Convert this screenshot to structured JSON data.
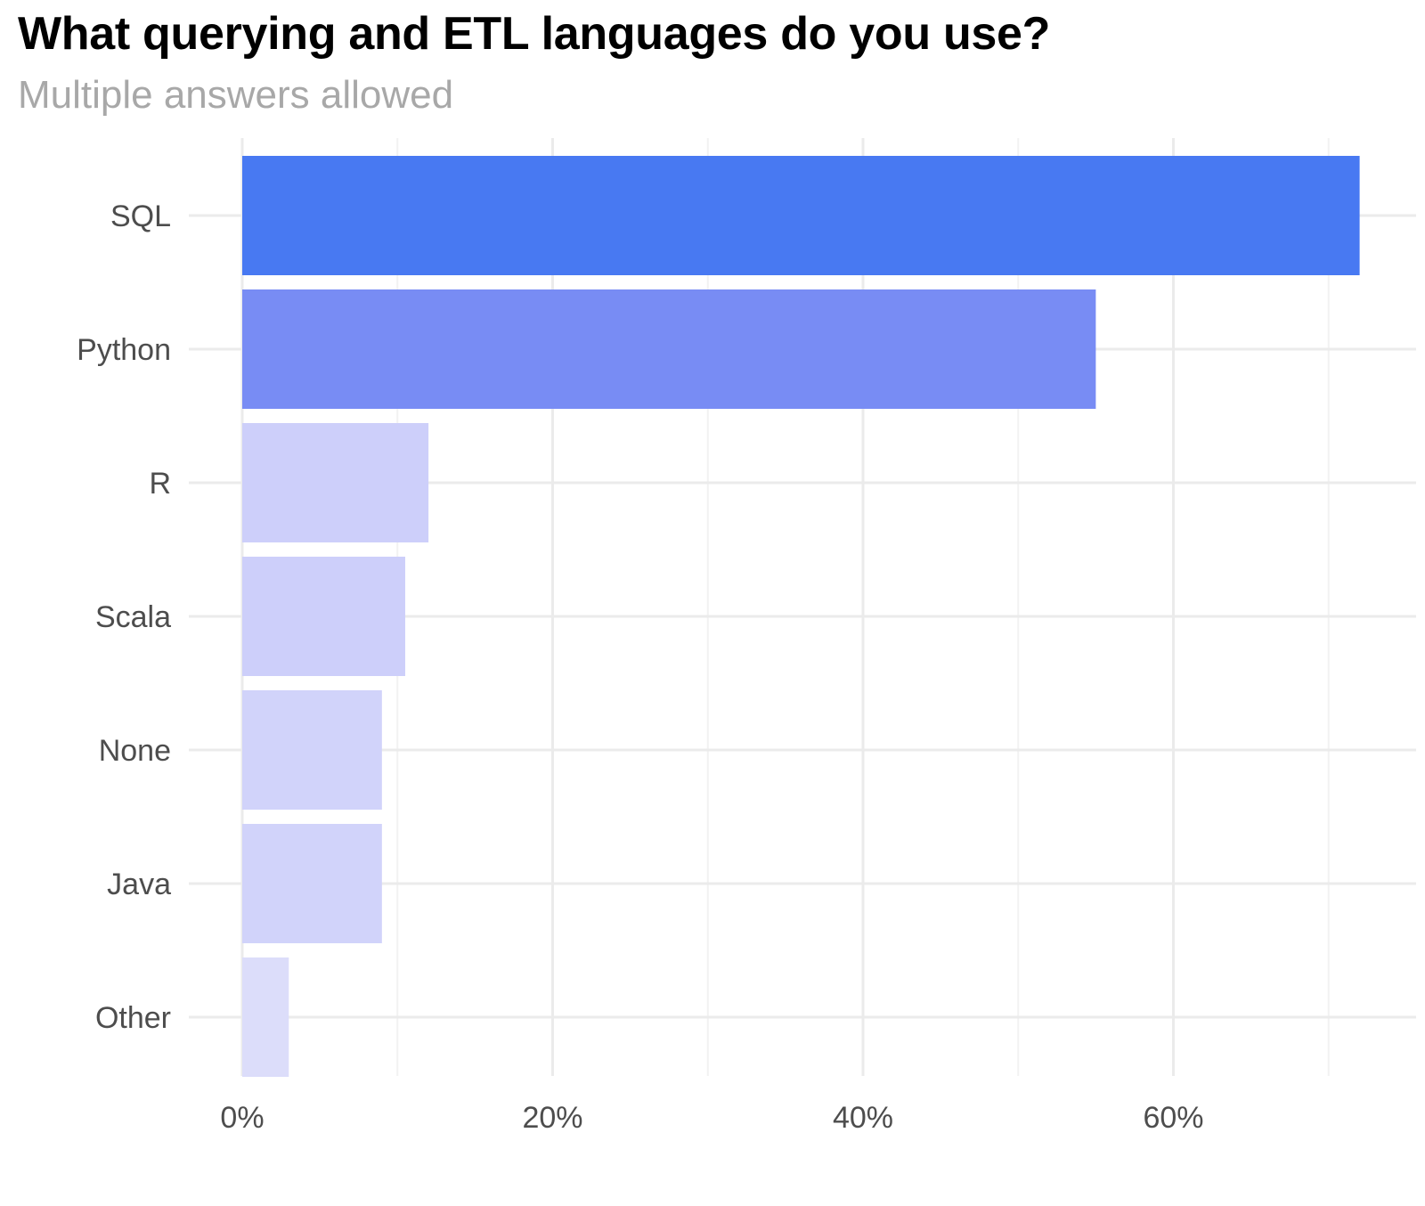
{
  "chart_data": {
    "type": "bar",
    "orientation": "horizontal",
    "title": "What querying and ETL languages do you use?",
    "subtitle": "Multiple answers allowed",
    "xlabel": "",
    "ylabel": "",
    "categories": [
      "SQL",
      "Python",
      "R",
      "Scala",
      "None",
      "Java",
      "Other"
    ],
    "values": [
      72,
      55,
      12,
      10.5,
      9,
      9,
      3
    ],
    "xlim": [
      0,
      75
    ],
    "x_ticks": [
      0,
      20,
      40,
      60
    ],
    "x_tick_labels": [
      "0%",
      "20%",
      "40%",
      "60%"
    ],
    "grid": true,
    "legend": "none",
    "colors": [
      "#4879f2",
      "#788cf4",
      "#cdcffa",
      "#cdcffa",
      "#d1d3fa",
      "#d1d3fa",
      "#dcddfa"
    ]
  }
}
